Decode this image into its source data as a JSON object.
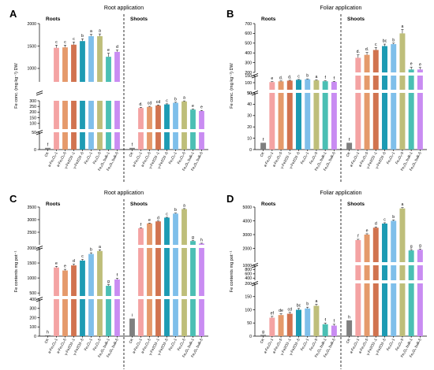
{
  "colors": [
    "#7f7f7f",
    "#f4a3a3",
    "#e59a6b",
    "#d1734f",
    "#1d9bb3",
    "#7fbfea",
    "#bebe7a",
    "#4bbfb4",
    "#c98cf2"
  ],
  "chart_data": [
    {
      "type": "bar",
      "letter": "A",
      "title": "Root application",
      "ylabel": "Fe conc. (mg kg⁻¹) DW",
      "sections": [
        "Roots",
        "Shoots"
      ],
      "categories": [
        "CK",
        "a-Fe₂O₃-1",
        "a-Fe₂O₃-5",
        "γ-Fe2O3 -1",
        "γ-Fe2O3 -5",
        "Fe₃O₄-1",
        "Fe₃O₄-5",
        "Fe₃O₄ bulk-1",
        "Fe₃O₄ bulk-5"
      ],
      "broken_axis": true,
      "segments": [
        [
          0,
          50,
          [
            0,
            50
          ]
        ],
        [
          50,
          300,
          [
            100,
            150,
            200,
            250,
            300
          ]
        ],
        [
          700,
          2000,
          [
            1000,
            1500,
            2000
          ]
        ]
      ],
      "series": [
        {
          "name": "Roots",
          "values": [
            5,
            1460,
            1470,
            1530,
            1610,
            1720,
            1720,
            1260,
            1370
          ],
          "errors": [
            0,
            60,
            50,
            60,
            50,
            40,
            50,
            80,
            40
          ],
          "letters": [
            "f",
            "c",
            "c",
            "c",
            "b",
            "a",
            "a",
            "e",
            "d"
          ]
        },
        {
          "name": "Shoots",
          "values": [
            5,
            236,
            246,
            258,
            268,
            282,
            294,
            222,
            210
          ],
          "errors": [
            0,
            6,
            5,
            5,
            5,
            5,
            5,
            5,
            5
          ],
          "letters": [
            "f",
            "d.",
            "cd",
            "cd",
            "c",
            "b",
            "a",
            "e",
            "e"
          ]
        }
      ]
    },
    {
      "type": "bar",
      "letter": "B",
      "title": "Foliar application",
      "ylabel": "Fe conc. (mg kg⁻¹) DW",
      "sections": [
        "Roots",
        "Shoots"
      ],
      "categories": [
        "CK",
        "a-Fe₂O₃-1",
        "a-Fe₂O₃-5",
        "γ-Fe2O3 -1",
        "γ-Fe2O3 -5",
        "Fe₃O₄-1",
        "Fe₃O₄-5",
        "Fe₃O₄ bulk-1",
        "Fe₃O₄ bulk-5"
      ],
      "broken_axis": true,
      "segments": [
        [
          0,
          50,
          [
            0,
            10,
            20,
            30,
            40,
            50
          ]
        ],
        [
          50,
          150,
          [
            50,
            100,
            150
          ]
        ],
        [
          200,
          700,
          [
            200,
            300,
            400,
            500,
            600,
            700
          ]
        ]
      ],
      "series": [
        {
          "name": "Roots",
          "values": [
            6,
            104,
            109,
            114,
            120,
            124,
            116,
            110,
            106
          ],
          "errors": [
            0,
            3,
            3,
            3,
            3,
            3,
            3,
            3,
            3
          ],
          "letters": [
            "f",
            "e",
            "d.",
            "d.",
            "c",
            "b",
            "a",
            "f",
            "f"
          ]
        },
        {
          "name": "Shoots",
          "values": [
            6,
            350,
            380,
            430,
            470,
            490,
            600,
            230,
            230
          ],
          "errors": [
            0,
            30,
            25,
            25,
            20,
            10,
            40,
            25,
            20
          ],
          "letters": [
            "f",
            "d.",
            "d.",
            "c",
            "bc",
            "b",
            "a",
            "e",
            "e"
          ]
        }
      ]
    },
    {
      "type": "bar",
      "letter": "C",
      "title": "Root application",
      "ylabel": "Fe contents mg pot⁻¹",
      "sections": [
        "Roots",
        "Shoots"
      ],
      "categories": [
        "CK",
        "a-Fe₂O₃-1",
        "a-Fe₂O₃-5",
        "γ-Fe2O3 -1",
        "γ-Fe2O3 -5",
        "Fe₃O₄-1",
        "Fe₃O₄-5",
        "Fe₃O₄ bulk-1",
        "Fe₃O₄ bulk-5"
      ],
      "broken_axis": true,
      "segments": [
        [
          0,
          400,
          [
            0,
            100,
            200,
            300,
            400
          ]
        ],
        [
          400,
          2000,
          [
            500,
            1000,
            1500,
            2000
          ]
        ],
        [
          2000,
          3500,
          [
            2500,
            3000,
            3500
          ]
        ]
      ],
      "series": [
        {
          "name": "Roots",
          "values": [
            10,
            1350,
            1250,
            1420,
            1580,
            1800,
            1900,
            740,
            950
          ],
          "errors": [
            0,
            40,
            40,
            40,
            40,
            40,
            40,
            40,
            40
          ],
          "letters": [
            "h",
            "e",
            "e",
            "d",
            "c",
            "b",
            "a",
            "g",
            "f"
          ]
        },
        {
          "name": "Shoots",
          "values": [
            190,
            2660,
            2850,
            2930,
            3080,
            3240,
            3420,
            2150,
            2050
          ],
          "errors": [
            0,
            15,
            15,
            15,
            15,
            20,
            20,
            15,
            15
          ],
          "letters": [
            "i",
            "f",
            "e",
            "d",
            "c",
            "b",
            "a",
            "g",
            "h"
          ]
        }
      ]
    },
    {
      "type": "bar",
      "letter": "D",
      "title": "Foliar application",
      "ylabel": "Fe contents mg pot⁻¹",
      "sections": [
        "Roots",
        "Shoots"
      ],
      "categories": [
        "CK",
        "a-Fe₂O₃-1",
        "a-Fe₂O₃-5",
        "γ-Fe2O3 -1",
        "γ-Fe2O3 -5",
        "Fe₃O₄-1",
        "Fe₃O₄-5",
        "Fe₃O₄ bulk-1",
        "Fe₃O₄ bulk-5"
      ],
      "broken_axis": true,
      "segments": [
        [
          0,
          200,
          [
            0,
            50,
            100,
            150,
            200
          ]
        ],
        [
          300,
          1000,
          [
            400,
            600,
            800,
            1000
          ]
        ],
        [
          1000,
          5000,
          [
            2000,
            3000,
            4000,
            5000
          ]
        ]
      ],
      "series": [
        {
          "name": "Roots",
          "values": [
            5,
            70,
            80,
            85,
            100,
            105,
            115,
            45,
            40
          ],
          "errors": [
            0,
            5,
            5,
            5,
            5,
            5,
            6,
            5,
            5
          ],
          "letters": [
            "g",
            "ef",
            "de",
            "cd",
            "bc",
            "b",
            "a",
            "f",
            "f"
          ]
        },
        {
          "name": "Shoots",
          "values": [
            60,
            2600,
            3000,
            3500,
            3800,
            4000,
            4900,
            1850,
            1900
          ],
          "errors": [
            0,
            60,
            60,
            60,
            60,
            60,
            60,
            60,
            60
          ],
          "letters": [
            "h",
            "f",
            "e",
            "d",
            "c",
            "b",
            "a",
            "g",
            "g"
          ]
        }
      ]
    }
  ]
}
